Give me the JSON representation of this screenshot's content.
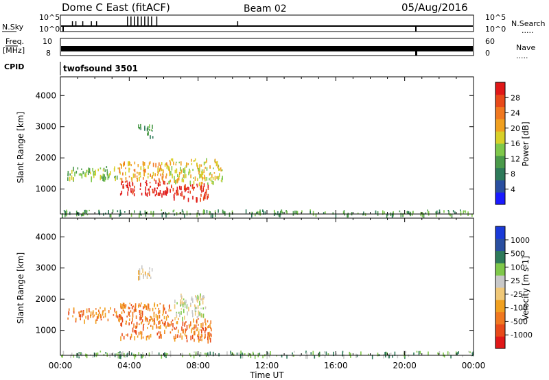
{
  "header": {
    "title": "Dome C East (fitACF)",
    "beam": "Beam 02",
    "date": "05/Aug/2016"
  },
  "top_panels": {
    "nsky_label": "N.Sky",
    "nsearch_label": "N.Search",
    "noise_top_tick": "10^5",
    "noise_bottom_tick": "10^0",
    "freq_label": "Freq.",
    "freq_unit": "[MHz]",
    "freq_top_tick": "10",
    "freq_bottom_tick": "8",
    "nave_label": "Nave",
    "nave_top_tick": "60",
    "nave_bottom_tick": "0",
    "cpid_label": "CPID",
    "cpid_value": "twofsound 3501",
    "dots": "....."
  },
  "colors": {
    "power_scale": [
      "#1a1aff",
      "#2a4fa0",
      "#2e7a5a",
      "#4a9a4a",
      "#7fc84a",
      "#d8d028",
      "#f0a020",
      "#f07820",
      "#e84a1a",
      "#e01818"
    ],
    "velocity_scale": [
      "#e01818",
      "#e84a1a",
      "#f07820",
      "#f0a020",
      "#f0c878",
      "#c8c8c8",
      "#7fc84a",
      "#2e7a5a",
      "#2a4fa0",
      "#1a3ad8"
    ]
  },
  "chart_data": [
    {
      "type": "heatmap",
      "name": "power",
      "ylabel": "Slant Range [km]",
      "yticks": [
        1000,
        2000,
        3000,
        4000
      ],
      "ylim": [
        200,
        4600
      ],
      "xlim": [
        0,
        24
      ],
      "colorbar_label": "Power [dB]",
      "colorbar_ticks": [
        "4",
        "8",
        "12",
        "16",
        "20",
        "24",
        "28"
      ],
      "approx_cells": [
        {
          "t0": 0.4,
          "t1": 3.4,
          "r0": 1350,
          "r1": 1750,
          "level": 4
        },
        {
          "t0": 3.4,
          "t1": 6.2,
          "r0": 800,
          "r1": 1300,
          "level": 9
        },
        {
          "t0": 3.4,
          "t1": 6.2,
          "r0": 1300,
          "r1": 1900,
          "level": 6
        },
        {
          "t0": 6.2,
          "t1": 8.6,
          "r0": 700,
          "r1": 1200,
          "level": 9
        },
        {
          "t0": 6.2,
          "t1": 9.4,
          "r0": 1200,
          "r1": 2000,
          "level": 5
        },
        {
          "t0": 4.5,
          "t1": 5.4,
          "r0": 2700,
          "r1": 3100,
          "level": 3
        },
        {
          "t0": 0.0,
          "t1": 24.0,
          "r0": 200,
          "r1": 350,
          "level": 3
        }
      ]
    },
    {
      "type": "heatmap",
      "name": "velocity",
      "ylabel": "Slant Range [km]",
      "yticks": [
        1000,
        2000,
        3000,
        4000
      ],
      "ylim": [
        200,
        4600
      ],
      "xlim": [
        0,
        24
      ],
      "xlabel": "Time UT",
      "xticks": [
        "00:00",
        "04:00",
        "08:00",
        "12:00",
        "16:00",
        "20:00",
        "00:00"
      ],
      "colorbar_label": "Velocity [m s-1]",
      "colorbar_ticks": [
        "1000",
        "500",
        "100",
        "25",
        "-25",
        "-100",
        "-500",
        "-1000"
      ],
      "approx_cells": [
        {
          "t0": 0.4,
          "t1": 3.4,
          "r0": 1350,
          "r1": 1750,
          "level": 2
        },
        {
          "t0": 3.4,
          "t1": 6.4,
          "r0": 800,
          "r1": 1900,
          "level": 2
        },
        {
          "t0": 6.4,
          "t1": 8.8,
          "r0": 700,
          "r1": 1400,
          "level": 2
        },
        {
          "t0": 6.6,
          "t1": 8.4,
          "r0": 1400,
          "r1": 2200,
          "level": 5
        },
        {
          "t0": 4.5,
          "t1": 5.4,
          "r0": 2700,
          "r1": 3100,
          "level": 4
        },
        {
          "t0": 0.0,
          "t1": 24.0,
          "r0": 200,
          "r1": 350,
          "level": 6
        }
      ]
    }
  ]
}
